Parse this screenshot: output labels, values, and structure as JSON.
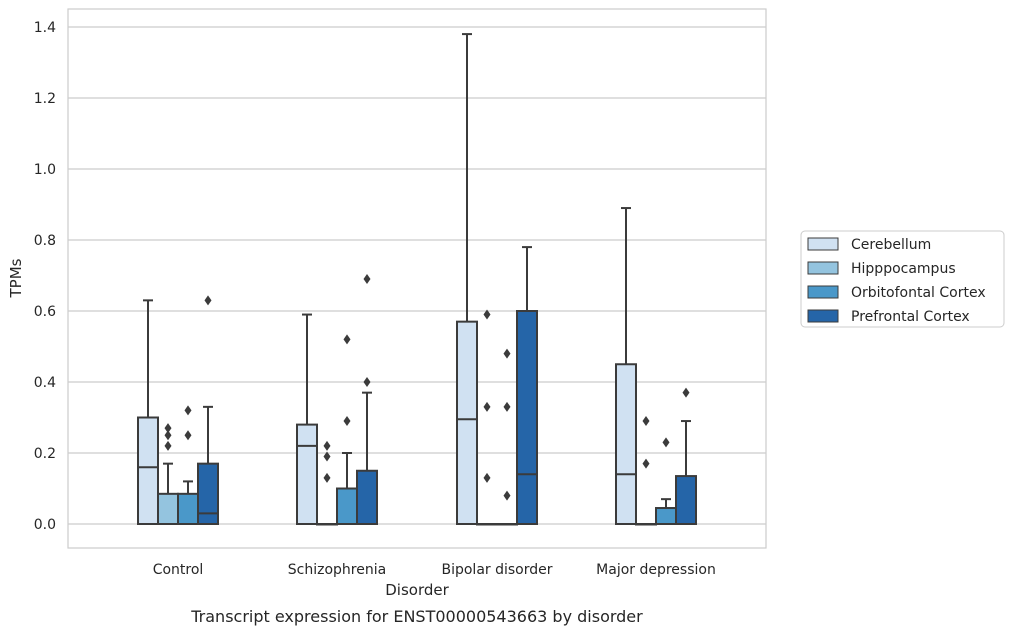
{
  "chart_data": {
    "type": "box",
    "caption": "Transcript expression for ENST00000543663 by disorder",
    "xlabel": "Disorder",
    "ylabel": "TPMs",
    "ylim": [
      -0.065,
      1.45
    ],
    "yticks": [
      0.0,
      0.2,
      0.4,
      0.6,
      0.8,
      1.0,
      1.2,
      1.4
    ],
    "ytick_labels": [
      "0.0",
      "0.2",
      "0.4",
      "0.6",
      "0.8",
      "1.0",
      "1.2",
      "1.4"
    ],
    "grid": "horizontal",
    "legend_position": "right",
    "categories": [
      "Control",
      "Schizophrenia",
      "Bipolar disorder",
      "Major depression"
    ],
    "series": [
      {
        "name": "Cerebellum",
        "color": "#d0e1f2",
        "boxes": [
          {
            "q1": 0.0,
            "median": 0.16,
            "q3": 0.3,
            "whisker_low": 0.0,
            "whisker_high": 0.63,
            "outliers": []
          },
          {
            "q1": 0.0,
            "median": 0.22,
            "q3": 0.28,
            "whisker_low": 0.0,
            "whisker_high": 0.59,
            "outliers": []
          },
          {
            "q1": 0.0,
            "median": 0.295,
            "q3": 0.57,
            "whisker_low": 0.0,
            "whisker_high": 1.38,
            "outliers": []
          },
          {
            "q1": 0.0,
            "median": 0.14,
            "q3": 0.45,
            "whisker_low": 0.0,
            "whisker_high": 0.89,
            "outliers": []
          }
        ]
      },
      {
        "name": "Hipppocampus",
        "color": "#94c4df",
        "boxes": [
          {
            "q1": 0.0,
            "median": 0.0,
            "q3": 0.085,
            "whisker_low": 0.0,
            "whisker_high": 0.17,
            "outliers": [
              0.22,
              0.25,
              0.27
            ]
          },
          {
            "q1": 0.0,
            "median": 0.0,
            "q3": 0.0,
            "whisker_low": 0.0,
            "whisker_high": 0.0,
            "outliers": [
              0.13,
              0.19,
              0.22
            ]
          },
          {
            "q1": 0.0,
            "median": 0.0,
            "q3": 0.0,
            "whisker_low": 0.0,
            "whisker_high": 0.0,
            "outliers": [
              0.13,
              0.33,
              0.59
            ]
          },
          {
            "q1": 0.0,
            "median": 0.0,
            "q3": 0.0,
            "whisker_low": 0.0,
            "whisker_high": 0.0,
            "outliers": [
              0.17,
              0.29
            ]
          }
        ]
      },
      {
        "name": "Orbitofontal Cortex",
        "color": "#4a98c9",
        "boxes": [
          {
            "q1": 0.0,
            "median": 0.0,
            "q3": 0.085,
            "whisker_low": 0.0,
            "whisker_high": 0.12,
            "outliers": [
              0.25,
              0.32
            ]
          },
          {
            "q1": 0.0,
            "median": 0.0,
            "q3": 0.1,
            "whisker_low": 0.0,
            "whisker_high": 0.2,
            "outliers": [
              0.29,
              0.52
            ]
          },
          {
            "q1": 0.0,
            "median": 0.0,
            "q3": 0.0,
            "whisker_low": 0.0,
            "whisker_high": 0.0,
            "outliers": [
              0.08,
              0.33,
              0.48
            ]
          },
          {
            "q1": 0.0,
            "median": 0.0,
            "q3": 0.045,
            "whisker_low": 0.0,
            "whisker_high": 0.07,
            "outliers": [
              0.23
            ]
          }
        ]
      },
      {
        "name": "Prefrontal Cortex",
        "color": "#2565a8",
        "boxes": [
          {
            "q1": 0.0,
            "median": 0.03,
            "q3": 0.17,
            "whisker_low": 0.0,
            "whisker_high": 0.33,
            "outliers": [
              0.63
            ]
          },
          {
            "q1": 0.0,
            "median": 0.0,
            "q3": 0.15,
            "whisker_low": 0.0,
            "whisker_high": 0.37,
            "outliers": [
              0.4,
              0.69
            ]
          },
          {
            "q1": 0.0,
            "median": 0.14,
            "q3": 0.6,
            "whisker_low": 0.0,
            "whisker_high": 0.78,
            "outliers": []
          },
          {
            "q1": 0.0,
            "median": 0.0,
            "q3": 0.135,
            "whisker_low": 0.0,
            "whisker_high": 0.29,
            "outliers": [
              0.37
            ]
          }
        ]
      }
    ]
  },
  "colors": {
    "grid": "#cccccc",
    "frame": "#cccccc",
    "box_edge": "#3b3b3b",
    "text": "#262626"
  }
}
